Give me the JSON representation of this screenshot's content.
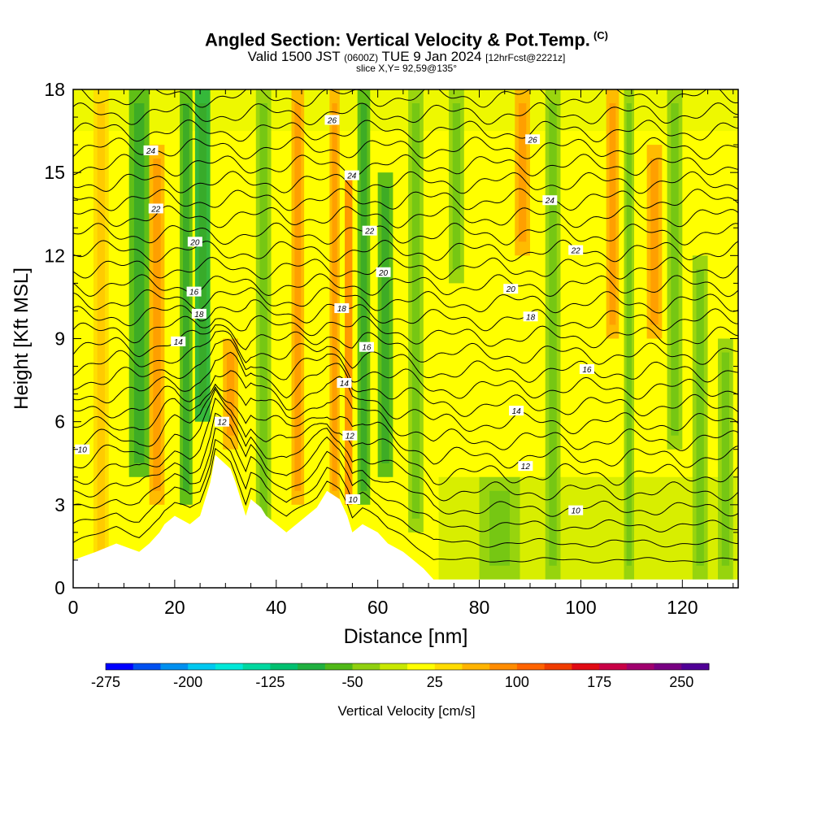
{
  "header": {
    "title": "Angled Section: Vertical Velocity & Pot.Temp.",
    "title_tag": "(C)",
    "subtitle_main_a": "Valid 1500 JST",
    "subtitle_small_a": "(0600Z)",
    "subtitle_main_b": "TUE 9 Jan 2024",
    "subtitle_small_b": "[12hrFcst@2221z]",
    "slice": "slice X,Y= 92,59@135°"
  },
  "chart_data": {
    "type": "heatmap",
    "title": "Angled Section: Vertical Velocity & Pot.Temp.",
    "xlabel": "Distance [nm]",
    "ylabel": "Height [Kft MSL]",
    "xlim": [
      0,
      131
    ],
    "ylim": [
      0,
      18
    ],
    "x_ticks": [
      0,
      20,
      40,
      60,
      80,
      100,
      120
    ],
    "y_ticks": [
      0,
      3,
      6,
      9,
      12,
      15,
      18
    ],
    "grid": false,
    "colorbar": {
      "label": "Vertical Velocity [cm/s]",
      "tick_labels": [
        "-275",
        "-200",
        "-125",
        "-50",
        "25",
        "100",
        "175",
        "250"
      ],
      "colors": [
        "#0000ff",
        "#0050f0",
        "#0090f0",
        "#00c8f0",
        "#00e8d8",
        "#00d8a0",
        "#00c070",
        "#20b040",
        "#50b818",
        "#90d010",
        "#c8e800",
        "#ffff00",
        "#ffdc00",
        "#ffb400",
        "#ff8c00",
        "#ff6400",
        "#f03c00",
        "#e00a14",
        "#c80046",
        "#a0006e",
        "#780082",
        "#500096"
      ]
    },
    "theta_contours": {
      "levels": [
        10,
        12,
        14,
        16,
        18,
        20,
        22,
        24,
        26
      ],
      "labels": [
        {
          "text": "10",
          "x": 1.8,
          "y": 5.0
        },
        {
          "text": "12",
          "x": 29.3,
          "y": 6.0
        },
        {
          "text": "14",
          "x": 20.7,
          "y": 8.9
        },
        {
          "text": "16",
          "x": 23.8,
          "y": 10.7
        },
        {
          "text": "18",
          "x": 24.8,
          "y": 9.9
        },
        {
          "text": "20",
          "x": 24.0,
          "y": 12.5
        },
        {
          "text": "22",
          "x": 16.3,
          "y": 13.7
        },
        {
          "text": "24",
          "x": 15.3,
          "y": 15.8
        },
        {
          "text": "26",
          "x": 51.0,
          "y": 16.9
        },
        {
          "text": "24",
          "x": 54.9,
          "y": 14.9
        },
        {
          "text": "22",
          "x": 58.4,
          "y": 12.9
        },
        {
          "text": "20",
          "x": 61.1,
          "y": 11.4
        },
        {
          "text": "18",
          "x": 52.9,
          "y": 10.1
        },
        {
          "text": "16",
          "x": 57.8,
          "y": 8.7
        },
        {
          "text": "14",
          "x": 53.4,
          "y": 7.4
        },
        {
          "text": "12",
          "x": 54.5,
          "y": 5.5
        },
        {
          "text": "10",
          "x": 55.1,
          "y": 3.2
        },
        {
          "text": "26",
          "x": 90.5,
          "y": 16.2
        },
        {
          "text": "24",
          "x": 93.9,
          "y": 14.0
        },
        {
          "text": "22",
          "x": 99.0,
          "y": 12.2
        },
        {
          "text": "20",
          "x": 86.2,
          "y": 10.8
        },
        {
          "text": "18",
          "x": 90.1,
          "y": 9.8
        },
        {
          "text": "16",
          "x": 101.2,
          "y": 7.9
        },
        {
          "text": "14",
          "x": 87.3,
          "y": 6.4
        },
        {
          "text": "12",
          "x": 89.1,
          "y": 4.4
        },
        {
          "text": "10",
          "x": 99.0,
          "y": 2.8
        }
      ]
    },
    "terrain_top_kft": [
      [
        0,
        1.0
      ],
      [
        4.5,
        1.3
      ],
      [
        8.5,
        1.6
      ],
      [
        13,
        1.3
      ],
      [
        15,
        1.6
      ],
      [
        17,
        2.0
      ],
      [
        18,
        2.3
      ],
      [
        20,
        2.6
      ],
      [
        23,
        2.3
      ],
      [
        25,
        2.6
      ],
      [
        26,
        3.2
      ],
      [
        27,
        3.8
      ],
      [
        28,
        4.8
      ],
      [
        31,
        4.3
      ],
      [
        32,
        3.8
      ],
      [
        33,
        3.2
      ],
      [
        34,
        2.6
      ],
      [
        35,
        3.2
      ],
      [
        37,
        2.9
      ],
      [
        38,
        2.6
      ],
      [
        40,
        2.3
      ],
      [
        42,
        2.0
      ],
      [
        44,
        2.3
      ],
      [
        46,
        2.6
      ],
      [
        48,
        2.9
      ],
      [
        49,
        3.2
      ],
      [
        50,
        3.5
      ],
      [
        52.5,
        3.2
      ],
      [
        54,
        2.6
      ],
      [
        55,
        2.0
      ],
      [
        57,
        2.3
      ],
      [
        60,
        2.0
      ],
      [
        62,
        1.6
      ],
      [
        65,
        1.3
      ],
      [
        67,
        1.0
      ],
      [
        69,
        0.7
      ],
      [
        71,
        0.3
      ],
      [
        131,
        0.3
      ]
    ],
    "bands": [
      {
        "x": 4,
        "w": 3,
        "v": 50,
        "y0": 0,
        "y1": 18
      },
      {
        "x": 11,
        "w": 4,
        "v": -60,
        "y0": 4,
        "y1": 18
      },
      {
        "x": 15,
        "w": 3,
        "v": 80,
        "y0": 3,
        "y1": 16
      },
      {
        "x": 21,
        "w": 2.5,
        "v": -90,
        "y0": 3,
        "y1": 18
      },
      {
        "x": 24,
        "w": 3,
        "v": -110,
        "y0": 6,
        "y1": 18
      },
      {
        "x": 29.5,
        "w": 3,
        "v": 90,
        "y0": 5,
        "y1": 9
      },
      {
        "x": 36,
        "w": 3,
        "v": -40,
        "y0": 2,
        "y1": 18
      },
      {
        "x": 43,
        "w": 2.5,
        "v": 60,
        "y0": 3,
        "y1": 18
      },
      {
        "x": 50.5,
        "w": 2,
        "v": 90,
        "y0": 3,
        "y1": 18
      },
      {
        "x": 53.5,
        "w": 1.5,
        "v": 120,
        "y0": 3,
        "y1": 15
      },
      {
        "x": 56,
        "w": 2.5,
        "v": -60,
        "y0": 3,
        "y1": 18
      },
      {
        "x": 60,
        "w": 3,
        "v": -70,
        "y0": 4,
        "y1": 15
      },
      {
        "x": 66,
        "w": 3,
        "v": -40,
        "y0": 2,
        "y1": 18
      },
      {
        "x": 74,
        "w": 3,
        "v": -40,
        "y0": 11,
        "y1": 18
      },
      {
        "x": 80,
        "w": 8,
        "v": -30,
        "y0": 0.3,
        "y1": 4
      },
      {
        "x": 87,
        "w": 3,
        "v": 60,
        "y0": 12,
        "y1": 18
      },
      {
        "x": 93,
        "w": 3,
        "v": -40,
        "y0": 0.3,
        "y1": 18
      },
      {
        "x": 105,
        "w": 2.5,
        "v": 60,
        "y0": 9,
        "y1": 18
      },
      {
        "x": 108.5,
        "w": 2,
        "v": -50,
        "y0": 0.3,
        "y1": 18
      },
      {
        "x": 113,
        "w": 3,
        "v": 60,
        "y0": 9,
        "y1": 16
      },
      {
        "x": 117,
        "w": 3,
        "v": -50,
        "y0": 5,
        "y1": 18
      },
      {
        "x": 122,
        "w": 3,
        "v": -30,
        "y0": 0.3,
        "y1": 12
      },
      {
        "x": 127,
        "w": 3,
        "v": -50,
        "y0": 0.3,
        "y1": 9
      }
    ]
  }
}
